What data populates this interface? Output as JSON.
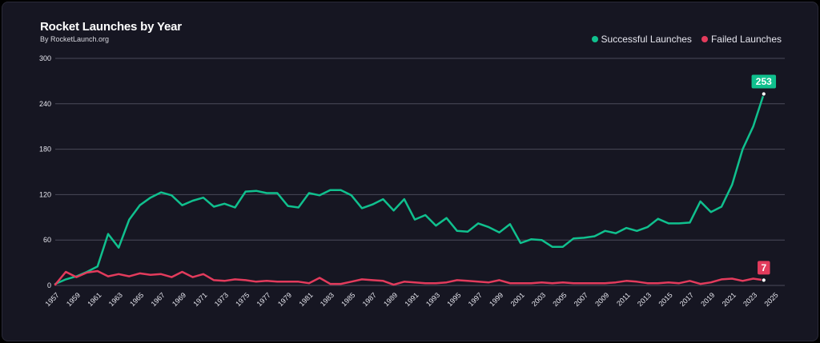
{
  "header": {
    "title": "Rocket Launches by Year",
    "subtitle": "By RocketLaunch.org"
  },
  "legend": {
    "items": [
      {
        "label": "Successful Launches",
        "color": "#10c08e"
      },
      {
        "label": "Failed Launches",
        "color": "#e33b5c"
      }
    ]
  },
  "chart_data": {
    "type": "line",
    "title": "Rocket Launches by Year",
    "subtitle": "By RocketLaunch.org",
    "xlabel": "",
    "ylabel": "",
    "ylim": [
      0,
      300
    ],
    "yticks": [
      0,
      60,
      120,
      180,
      240,
      300
    ],
    "xlim": [
      1957,
      2025
    ],
    "xticks": [
      1957,
      1959,
      1961,
      1963,
      1965,
      1967,
      1969,
      1971,
      1973,
      1975,
      1977,
      1979,
      1981,
      1983,
      1985,
      1987,
      1989,
      1991,
      1993,
      1995,
      1997,
      1999,
      2001,
      2003,
      2005,
      2007,
      2009,
      2011,
      2013,
      2015,
      2017,
      2019,
      2021,
      2023,
      2025
    ],
    "grid": true,
    "legend_position": "top-right",
    "x": [
      1957,
      1958,
      1959,
      1960,
      1961,
      1962,
      1963,
      1964,
      1965,
      1966,
      1967,
      1968,
      1969,
      1970,
      1971,
      1972,
      1973,
      1974,
      1975,
      1976,
      1977,
      1978,
      1979,
      1980,
      1981,
      1982,
      1983,
      1984,
      1985,
      1986,
      1987,
      1988,
      1989,
      1990,
      1991,
      1992,
      1993,
      1994,
      1995,
      1996,
      1997,
      1998,
      1999,
      2000,
      2001,
      2002,
      2003,
      2004,
      2005,
      2006,
      2007,
      2008,
      2009,
      2010,
      2011,
      2012,
      2013,
      2014,
      2015,
      2016,
      2017,
      2018,
      2019,
      2020,
      2021,
      2022,
      2023,
      2024
    ],
    "series": [
      {
        "name": "Successful Launches",
        "color": "#10c08e",
        "values": [
          2,
          8,
          12,
          18,
          25,
          68,
          50,
          87,
          106,
          116,
          123,
          119,
          106,
          112,
          116,
          104,
          108,
          103,
          124,
          125,
          122,
          122,
          105,
          103,
          122,
          119,
          126,
          126,
          119,
          102,
          107,
          114,
          99,
          114,
          87,
          93,
          79,
          89,
          72,
          71,
          82,
          77,
          70,
          81,
          56,
          61,
          60,
          51,
          51,
          62,
          63,
          65,
          72,
          69,
          76,
          72,
          77,
          88,
          82,
          82,
          83,
          111,
          97,
          104,
          133,
          180,
          210,
          253
        ],
        "end_label": "253"
      },
      {
        "name": "Failed Launches",
        "color": "#e33b5c",
        "values": [
          1,
          18,
          11,
          17,
          19,
          12,
          15,
          12,
          16,
          14,
          15,
          11,
          18,
          11,
          15,
          7,
          6,
          8,
          7,
          5,
          6,
          5,
          5,
          5,
          3,
          10,
          2,
          2,
          5,
          8,
          7,
          6,
          1,
          5,
          4,
          3,
          3,
          4,
          7,
          6,
          5,
          4,
          7,
          3,
          3,
          3,
          4,
          3,
          4,
          3,
          3,
          3,
          3,
          4,
          6,
          5,
          3,
          3,
          4,
          3,
          6,
          2,
          4,
          8,
          9,
          6,
          9,
          7
        ],
        "end_label": "7"
      }
    ]
  }
}
